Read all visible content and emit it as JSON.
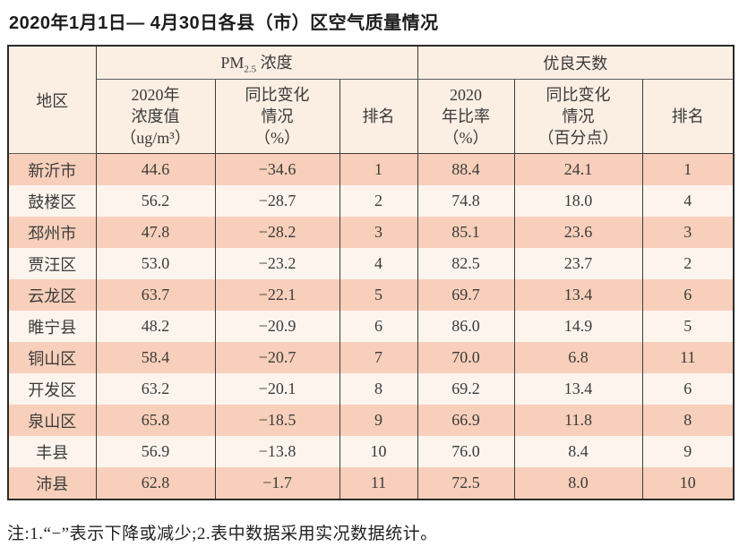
{
  "title": "2020年1月1日— 4月30日各县（市）区空气质量情况",
  "note": "注:1.“−”表示下降或减少;2.表中数据采用实况数据统计。",
  "colors": {
    "header_bg": "#fbeee3",
    "row_peach": "#f7cfba",
    "row_light": "#fdf4ee",
    "border_outer": "#2b2b2b",
    "border_inner": "#3d3d3d",
    "text": "#3b3b3b"
  },
  "chart_data": {
    "type": "table",
    "title": "2020年1月1日— 4月30日各县（市）区空气质量情况",
    "group_headers": {
      "region": "地区",
      "pm25_main": "PM",
      "pm25_sub": "2.5",
      "pm25_rest": " 浓度",
      "good_days": "优良天数"
    },
    "sub_headers": {
      "conc": "2020年\n浓度值\n（ug/m³）",
      "change_pct": "同比变化\n情况\n（%）",
      "rank1": "排名",
      "ratio": "2020\n年比率\n（%）",
      "change_pts": "同比变化\n情况\n（百分点）",
      "rank2": "排名"
    },
    "columns": [
      "地区",
      "2020年浓度值（ug/m³）",
      "同比变化情况（%）",
      "排名",
      "2020年比率（%）",
      "同比变化情况（百分点）",
      "排名"
    ],
    "rows": [
      [
        "新沂市",
        "44.6",
        "−34.6",
        "1",
        "88.4",
        "24.1",
        "1"
      ],
      [
        "鼓楼区",
        "56.2",
        "−28.7",
        "2",
        "74.8",
        "18.0",
        "4"
      ],
      [
        "邳州市",
        "47.8",
        "−28.2",
        "3",
        "85.1",
        "23.6",
        "3"
      ],
      [
        "贾汪区",
        "53.0",
        "−23.2",
        "4",
        "82.5",
        "23.7",
        "2"
      ],
      [
        "云龙区",
        "63.7",
        "−22.1",
        "5",
        "69.7",
        "13.4",
        "6"
      ],
      [
        "睢宁县",
        "48.2",
        "−20.9",
        "6",
        "86.0",
        "14.9",
        "5"
      ],
      [
        "铜山区",
        "58.4",
        "−20.7",
        "7",
        "70.0",
        "6.8",
        "11"
      ],
      [
        "开发区",
        "63.2",
        "−20.1",
        "8",
        "69.2",
        "13.4",
        "6"
      ],
      [
        "泉山区",
        "65.8",
        "−18.5",
        "9",
        "66.9",
        "11.8",
        "8"
      ],
      [
        "丰县",
        "56.9",
        "−13.8",
        "10",
        "76.0",
        "8.4",
        "9"
      ],
      [
        "沛县",
        "62.8",
        "−1.7",
        "11",
        "72.5",
        "8.0",
        "10"
      ]
    ]
  }
}
